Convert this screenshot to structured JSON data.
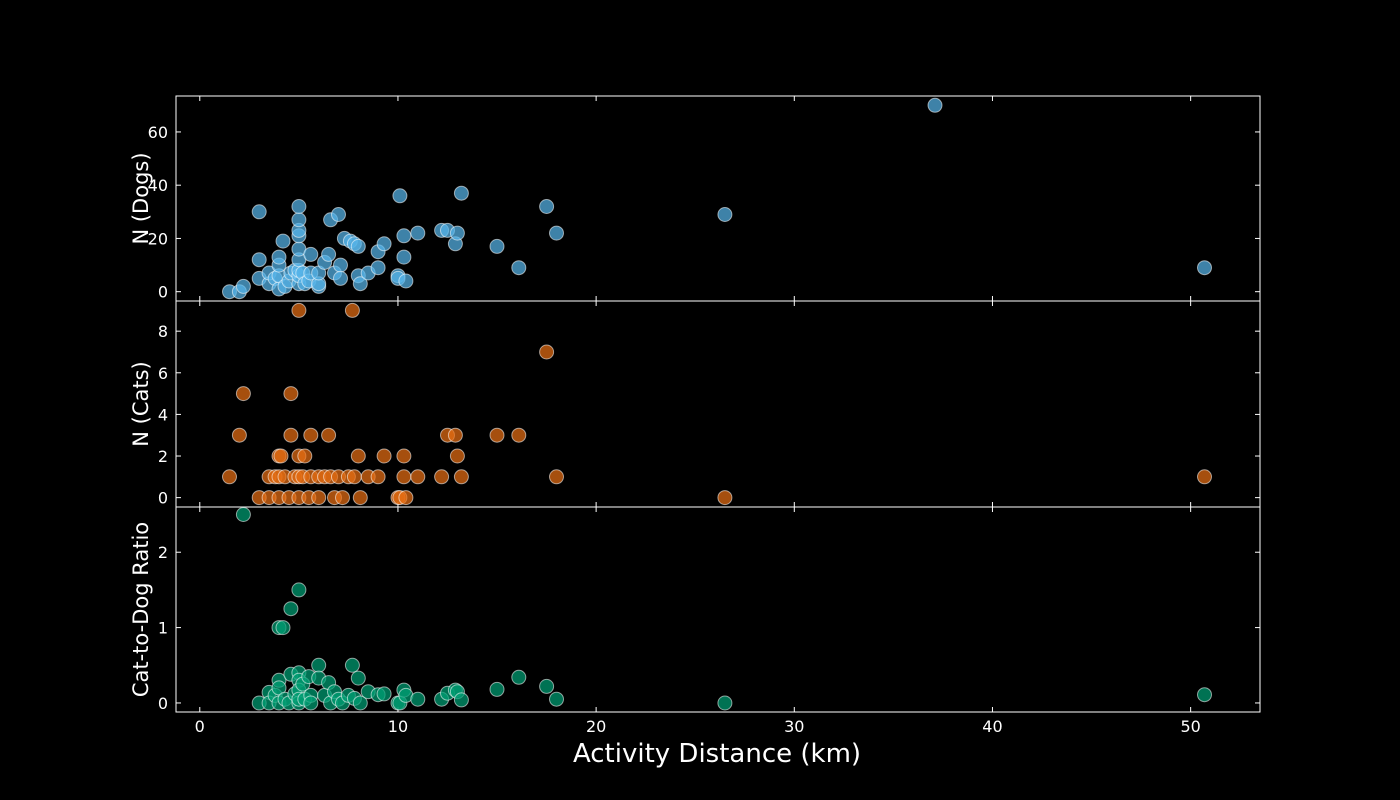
{
  "chart_data": {
    "type": "scatter",
    "xlabel": "Activity Distance (km)",
    "xlim": [
      -1.2,
      53.5
    ],
    "xticks": [
      0,
      10,
      20,
      30,
      40,
      50
    ],
    "grid": false,
    "colors": {
      "background": "#000000",
      "axes": "#ffffff",
      "text": "#ffffff"
    },
    "panels": [
      {
        "ylabel": "N (Dogs)",
        "ylim": [
          -3.5,
          73.5
        ],
        "yticks": [
          0,
          20,
          40,
          60
        ],
        "color": "#56B4E9",
        "points": [
          [
            1.5,
            0
          ],
          [
            2,
            0
          ],
          [
            2.2,
            2
          ],
          [
            3,
            5
          ],
          [
            3,
            12
          ],
          [
            3,
            30
          ],
          [
            3.5,
            3
          ],
          [
            3.5,
            7
          ],
          [
            3.8,
            5
          ],
          [
            4,
            1
          ],
          [
            4,
            6
          ],
          [
            4,
            10
          ],
          [
            4,
            13
          ],
          [
            4.2,
            19
          ],
          [
            4.3,
            2
          ],
          [
            4.5,
            4
          ],
          [
            4.6,
            7
          ],
          [
            4.8,
            8
          ],
          [
            5,
            3
          ],
          [
            5,
            6
          ],
          [
            5,
            8
          ],
          [
            5,
            12
          ],
          [
            5,
            16
          ],
          [
            5,
            21
          ],
          [
            5,
            23
          ],
          [
            5,
            27
          ],
          [
            5,
            32
          ],
          [
            5.2,
            7
          ],
          [
            5.3,
            3
          ],
          [
            5.5,
            4
          ],
          [
            5.6,
            7
          ],
          [
            5.6,
            14
          ],
          [
            6,
            2
          ],
          [
            6,
            3
          ],
          [
            6,
            7
          ],
          [
            6.3,
            11
          ],
          [
            6.5,
            14
          ],
          [
            6.6,
            27
          ],
          [
            6.8,
            7
          ],
          [
            7,
            29
          ],
          [
            7.1,
            10
          ],
          [
            7.1,
            5
          ],
          [
            7.3,
            20
          ],
          [
            7.6,
            19
          ],
          [
            7.8,
            18
          ],
          [
            8,
            17
          ],
          [
            8,
            6
          ],
          [
            8.1,
            3
          ],
          [
            8.5,
            7
          ],
          [
            9,
            15
          ],
          [
            9,
            9
          ],
          [
            9.3,
            18
          ],
          [
            10,
            6
          ],
          [
            10,
            5
          ],
          [
            10.1,
            36
          ],
          [
            10.3,
            13
          ],
          [
            10.3,
            21
          ],
          [
            10.4,
            4
          ],
          [
            11,
            22
          ],
          [
            12.2,
            23
          ],
          [
            12.5,
            23
          ],
          [
            12.9,
            18
          ],
          [
            13,
            22
          ],
          [
            13.2,
            37
          ],
          [
            15,
            17
          ],
          [
            16.1,
            9
          ],
          [
            17.5,
            32
          ],
          [
            18,
            22
          ],
          [
            26.5,
            29
          ],
          [
            37.1,
            70
          ],
          [
            50.7,
            9
          ]
        ]
      },
      {
        "ylabel": "N (Cats)",
        "ylim": [
          -0.45,
          9.45
        ],
        "yticks": [
          0,
          2,
          4,
          6,
          8
        ],
        "color": "#E66E14",
        "points": [
          [
            1.5,
            1
          ],
          [
            2,
            3
          ],
          [
            2.2,
            5
          ],
          [
            3,
            0
          ],
          [
            3.5,
            0
          ],
          [
            3.5,
            1
          ],
          [
            3.8,
            1
          ],
          [
            4,
            0
          ],
          [
            4,
            1
          ],
          [
            4,
            2
          ],
          [
            4.1,
            2
          ],
          [
            4.3,
            1
          ],
          [
            4.5,
            0
          ],
          [
            4.6,
            3
          ],
          [
            4.6,
            5
          ],
          [
            4.8,
            1
          ],
          [
            5,
            0
          ],
          [
            5,
            1
          ],
          [
            5,
            2
          ],
          [
            5,
            9
          ],
          [
            5.2,
            1
          ],
          [
            5.3,
            2
          ],
          [
            5.5,
            0
          ],
          [
            5.6,
            1
          ],
          [
            5.6,
            3
          ],
          [
            6,
            0
          ],
          [
            6,
            1
          ],
          [
            6.3,
            1
          ],
          [
            6.5,
            3
          ],
          [
            6.6,
            1
          ],
          [
            6.8,
            0
          ],
          [
            7,
            1
          ],
          [
            7.2,
            0
          ],
          [
            7.5,
            1
          ],
          [
            7.7,
            9
          ],
          [
            7.8,
            1
          ],
          [
            8,
            2
          ],
          [
            8.1,
            0
          ],
          [
            8.5,
            1
          ],
          [
            9,
            1
          ],
          [
            9.3,
            2
          ],
          [
            10,
            0
          ],
          [
            10.1,
            0
          ],
          [
            10.3,
            2
          ],
          [
            10.3,
            1
          ],
          [
            10.4,
            0
          ],
          [
            11,
            1
          ],
          [
            12.2,
            1
          ],
          [
            12.5,
            3
          ],
          [
            12.9,
            3
          ],
          [
            13,
            2
          ],
          [
            13.2,
            1
          ],
          [
            15,
            3
          ],
          [
            16.1,
            3
          ],
          [
            17.5,
            7
          ],
          [
            18,
            1
          ],
          [
            26.5,
            0
          ],
          [
            50.7,
            1
          ]
        ]
      },
      {
        "ylabel": "Cat-to-Dog Ratio",
        "ylim": [
          -0.12,
          2.6
        ],
        "yticks": [
          0,
          1,
          2
        ],
        "color": "#009E73",
        "points": [
          [
            2.2,
            2.5
          ],
          [
            3,
            0
          ],
          [
            3.5,
            0.14
          ],
          [
            3.5,
            0
          ],
          [
            3.8,
            0.1
          ],
          [
            4,
            0.3
          ],
          [
            4,
            0.2
          ],
          [
            4,
            1
          ],
          [
            4,
            0
          ],
          [
            4.2,
            1
          ],
          [
            4.3,
            0.05
          ],
          [
            4.5,
            0
          ],
          [
            4.6,
            1.25
          ],
          [
            4.6,
            0.38
          ],
          [
            4.8,
            0.12
          ],
          [
            5,
            1.5
          ],
          [
            5,
            0.4
          ],
          [
            5,
            0.3
          ],
          [
            5,
            0.17
          ],
          [
            5,
            0
          ],
          [
            5,
            0.05
          ],
          [
            5.2,
            0.25
          ],
          [
            5.3,
            0.05
          ],
          [
            5.5,
            0.35
          ],
          [
            5.6,
            0.1
          ],
          [
            5.6,
            0
          ],
          [
            6,
            0.5
          ],
          [
            6,
            0.33
          ],
          [
            6.3,
            0.1
          ],
          [
            6.5,
            0.27
          ],
          [
            6.6,
            0
          ],
          [
            6.8,
            0.15
          ],
          [
            7,
            0.05
          ],
          [
            7.2,
            0
          ],
          [
            7.5,
            0.1
          ],
          [
            7.7,
            0.5
          ],
          [
            7.8,
            0.06
          ],
          [
            8,
            0.33
          ],
          [
            8.1,
            0
          ],
          [
            8.5,
            0.15
          ],
          [
            9,
            0.11
          ],
          [
            9.3,
            0.12
          ],
          [
            10,
            0
          ],
          [
            10.1,
            0
          ],
          [
            10.3,
            0.17
          ],
          [
            10.4,
            0.1
          ],
          [
            11,
            0.05
          ],
          [
            12.2,
            0.05
          ],
          [
            12.5,
            0.13
          ],
          [
            12.9,
            0.17
          ],
          [
            13,
            0.15
          ],
          [
            13.2,
            0.04
          ],
          [
            15,
            0.18
          ],
          [
            16.1,
            0.34
          ],
          [
            17.5,
            0.22
          ],
          [
            18,
            0.05
          ],
          [
            26.5,
            0
          ],
          [
            50.7,
            0.11
          ]
        ]
      }
    ]
  }
}
